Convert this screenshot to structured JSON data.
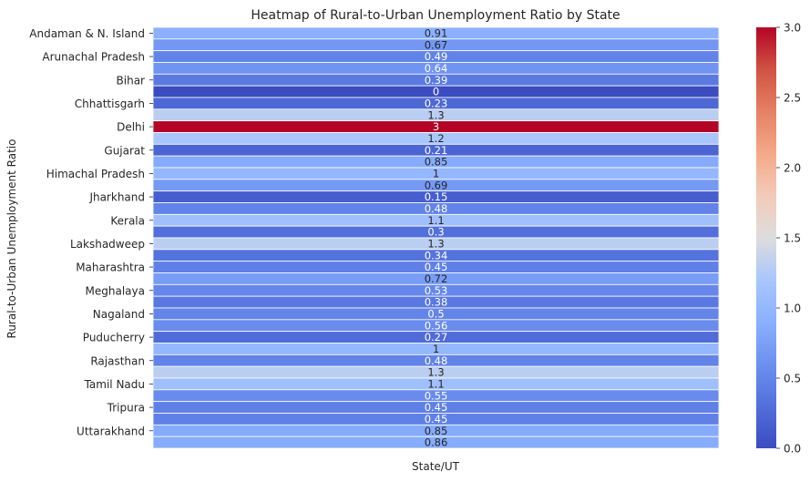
{
  "chart_data": {
    "type": "heatmap",
    "title": "Heatmap of Rural-to-Urban Unemployment Ratio by State",
    "xlabel": "State/UT",
    "ylabel": "Rural-to-Urban Unemployment Ratio",
    "y_tick_labels": [
      "Andaman & N. Island",
      "Arunachal Pradesh",
      "Bihar",
      "Chhattisgarh",
      "Delhi",
      "Gujarat",
      "Himachal Pradesh",
      "Jharkhand",
      "Kerala",
      "Lakshadweep",
      "Maharashtra",
      "Meghalaya",
      "Nagaland",
      "Puducherry",
      "Rajasthan",
      "Tamil Nadu",
      "Tripura",
      "Uttarakhand"
    ],
    "tick_every": 2,
    "values": [
      0.91,
      0.67,
      0.49,
      0.64,
      0.39,
      0,
      0.23,
      1.3,
      3,
      1.2,
      0.21,
      0.85,
      1,
      0.69,
      0.15,
      0.48,
      1.1,
      0.3,
      1.3,
      0.34,
      0.45,
      0.72,
      0.53,
      0.38,
      0.5,
      0.56,
      0.27,
      1,
      0.48,
      1.3,
      1.1,
      0.55,
      0.45,
      0.45,
      0.85,
      0.86
    ],
    "colormap": "coolwarm",
    "vmin": 0,
    "vmax": 3,
    "colorbar_ticks": [
      "0.0",
      "0.5",
      "1.0",
      "1.5",
      "2.0",
      "2.5",
      "3.0"
    ],
    "colors": {
      "low": "#3b4cc0",
      "mid": "#dddddd",
      "high": "#b40426"
    }
  }
}
